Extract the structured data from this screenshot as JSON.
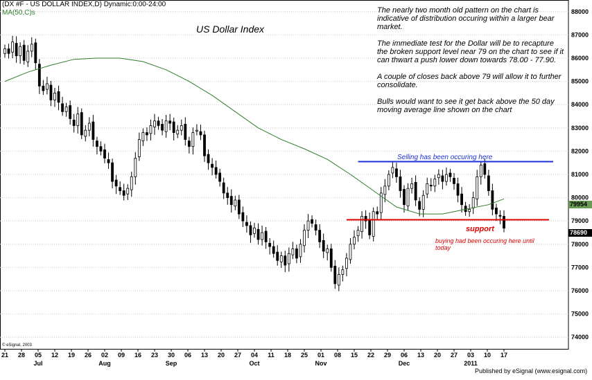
{
  "header": {
    "symbol": "(DX #F - US DOLLAR INDEX,D) Dynamic:0:00-24:00",
    "ma_label": "MA(50,C)s"
  },
  "title": "US Dollar Index",
  "commentary": [
    "The nearly two month old pattern on the chart is indicative of distribution occuring within a larger bear market.",
    "The immediate test for the Dollar will be to recapture the broken support level near 79 on the chart to see if it can thwart a push lower down towards 78.00 - 77.90.",
    "A couple of closes back above 79 will allow it to further consolidate.",
    "Bulls would want to see it get back above the 50 day moving average line shown on the chart"
  ],
  "annotations": {
    "selling": "Selling has been occuring here",
    "support": "support",
    "buying": "buying had been occuring here until today"
  },
  "price_tags": {
    "ma_value": "79954",
    "last_value": "78690"
  },
  "footer": {
    "copyright": "© eSignal, 2003",
    "publisher": "Published by eSignal (www.esignal.com)"
  },
  "colors": {
    "candle": "#000000",
    "ma_line": "#2e7d2e",
    "resistance": "#1a2fd6",
    "support": "#e00000",
    "grid": "#cccccc"
  },
  "chart_data": {
    "type": "candlestick",
    "title": "US Dollar Index",
    "ylim": [
      73500,
      88500
    ],
    "y_ticks": [
      74000,
      75000,
      76000,
      77000,
      78000,
      79000,
      80000,
      81000,
      82000,
      83000,
      84000,
      85000,
      86000,
      87000,
      88000
    ],
    "x_tick_labels": [
      "21",
      "28",
      "05",
      "12",
      "19",
      "26",
      "02",
      "09",
      "16",
      "23",
      "30",
      "06",
      "13",
      "20",
      "27",
      "04",
      "11",
      "18",
      "25",
      "01",
      "08",
      "15",
      "22",
      "29",
      "06",
      "13",
      "20",
      "27",
      "03",
      "10",
      "17"
    ],
    "month_labels": [
      {
        "label": "Jul",
        "tick": 2
      },
      {
        "label": "Aug",
        "tick": 6
      },
      {
        "label": "Sep",
        "tick": 10
      },
      {
        "label": "Oct",
        "tick": 15
      },
      {
        "label": "Nov",
        "tick": 19
      },
      {
        "label": "Dec",
        "tick": 24
      },
      {
        "label": "2011",
        "tick": 28
      }
    ],
    "closes": [
      86400,
      86200,
      86700,
      86100,
      86500,
      85900,
      86300,
      86600,
      85800,
      84800,
      84600,
      84900,
      84200,
      84500,
      84100,
      83700,
      83900,
      83400,
      83100,
      83600,
      82700,
      82900,
      83200,
      82500,
      82200,
      82000,
      81700,
      81500,
      80700,
      80500,
      80300,
      80100,
      80400,
      80900,
      81700,
      82500,
      82800,
      82700,
      83100,
      83300,
      83100,
      82900,
      83300,
      83200,
      82800,
      82900,
      83100,
      82500,
      82200,
      82800,
      82900,
      82700,
      81800,
      81500,
      81300,
      81000,
      80700,
      80200,
      80000,
      79700,
      79900,
      79300,
      79000,
      78800,
      78400,
      78700,
      78200,
      78500,
      78100,
      77900,
      77600,
      77300,
      77500,
      77100,
      77600,
      77800,
      77400,
      78000,
      78600,
      79000,
      78900,
      78600,
      78100,
      77700,
      77800,
      77000,
      76300,
      76700,
      76900,
      77400,
      78000,
      78300,
      78600,
      79200,
      79000,
      78400,
      79400,
      79300,
      80200,
      80500,
      81000,
      81300,
      80900,
      80300,
      79700,
      80400,
      80600,
      79900,
      79500,
      80100,
      80600,
      80500,
      80800,
      81000,
      80700,
      81000,
      80900,
      80600,
      80100,
      79700,
      79400,
      79500,
      80000,
      80900,
      81400,
      81000,
      80300,
      79500,
      79300,
      79200,
      78690
    ],
    "ma50": [
      85000,
      85400,
      85700,
      85950,
      86000,
      86000,
      85850,
      85500,
      85000,
      84400,
      83700,
      83000,
      82500,
      82100,
      81650,
      81000,
      80300,
      79600,
      79300,
      79300,
      79500,
      79700,
      79950
    ],
    "ma50_step": 6,
    "resistance_level": 81550,
    "support_level": 79050,
    "last_close": 78690,
    "ma_last": 79954
  }
}
